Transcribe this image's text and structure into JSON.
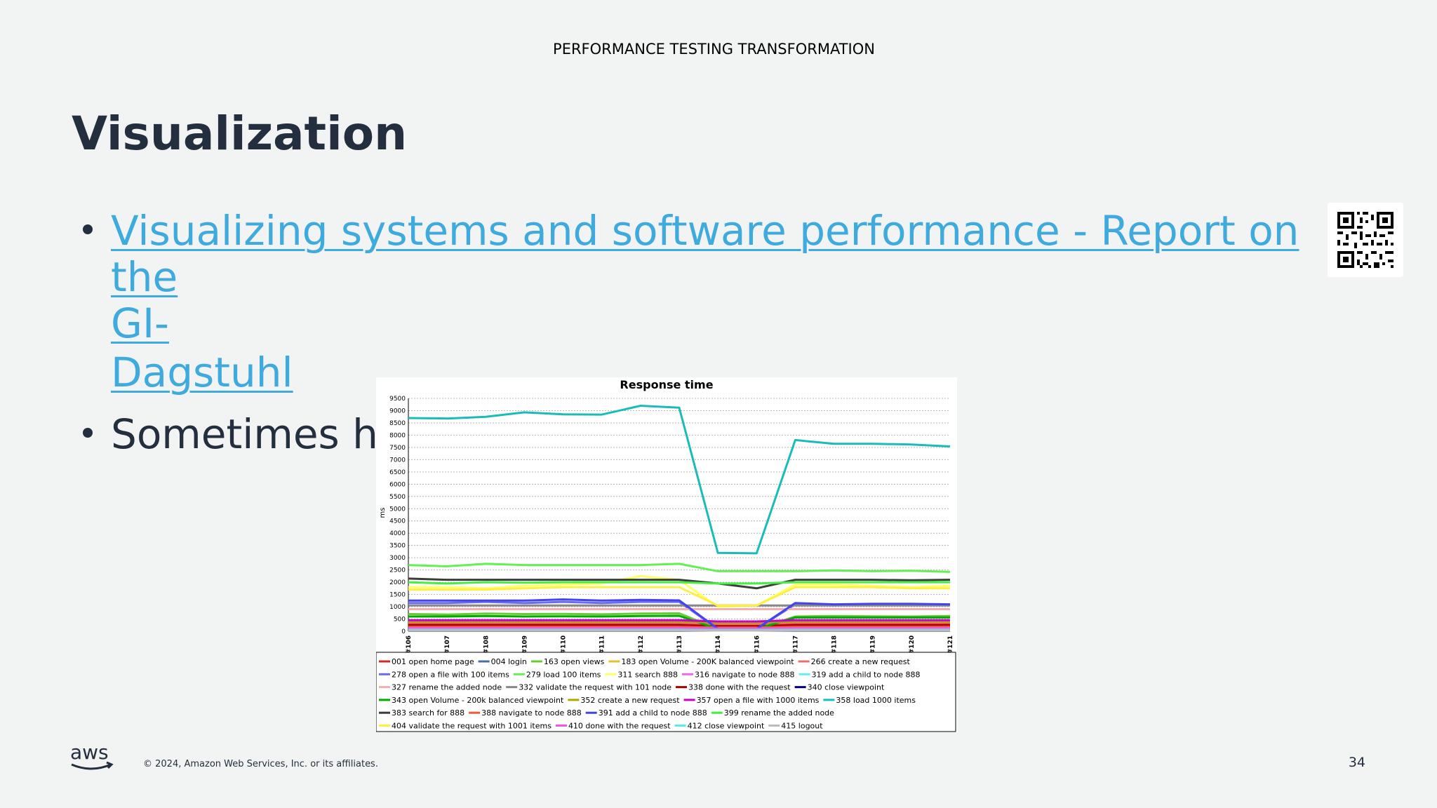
{
  "header": {
    "title": "PERFORMANCE TESTING TRANSFORMATION"
  },
  "slide": {
    "title": "Visualization",
    "bullet1": {
      "line1": "Visualizing systems and software performance - Report on the",
      "line2": "GI-",
      "line3": "Dagstuhl"
    },
    "bullet2": "Sometimes he"
  },
  "footer": {
    "logo": "aws",
    "copyright": "© 2024, Amazon Web Services, Inc. or its affiliates.",
    "page": "34"
  },
  "colors": {
    "background": "#f2f3f3",
    "title": "#232f3e",
    "link": "#3faadd"
  },
  "chart_data": {
    "type": "line",
    "title": "Response time",
    "ylabel": "ms",
    "ylim": [
      0,
      9500
    ],
    "yticks": [
      0,
      500,
      1000,
      1500,
      2000,
      2500,
      3000,
      3500,
      4000,
      4500,
      5000,
      5500,
      6000,
      6500,
      7000,
      7500,
      8000,
      8500,
      9000,
      9500
    ],
    "x": [
      "#106",
      "#107",
      "#108",
      "#109",
      "#110",
      "#111",
      "#112",
      "#113",
      "#114",
      "#116",
      "#117",
      "#118",
      "#119",
      "#120",
      "#121"
    ],
    "grid": true,
    "legend_position": "bottom",
    "series": [
      {
        "name": "001 open home page",
        "color": "#d62728",
        "values": [
          300,
          300,
          300,
          300,
          300,
          300,
          300,
          300,
          250,
          250,
          300,
          300,
          300,
          300,
          300
        ]
      },
      {
        "name": "004 login",
        "color": "#4a6fa5",
        "values": [
          200,
          200,
          200,
          200,
          200,
          200,
          200,
          200,
          150,
          150,
          200,
          200,
          200,
          200,
          200
        ]
      },
      {
        "name": "163 open views",
        "color": "#66cc33",
        "values": [
          700,
          680,
          720,
          700,
          710,
          690,
          720,
          730,
          100,
          100,
          600,
          620,
          610,
          600,
          620
        ]
      },
      {
        "name": "183 open Volume - 200K balanced viewpoint",
        "color": "#e6c229",
        "values": [
          100,
          100,
          100,
          100,
          100,
          100,
          100,
          100,
          80,
          80,
          100,
          100,
          100,
          100,
          100
        ]
      },
      {
        "name": "266 create a new request",
        "color": "#f26b6b",
        "values": [
          350,
          350,
          350,
          350,
          350,
          350,
          350,
          350,
          300,
          300,
          350,
          350,
          350,
          350,
          350
        ]
      },
      {
        "name": "278 open a file with 100 items",
        "color": "#6b6bf2",
        "values": [
          1150,
          1150,
          1200,
          1150,
          1200,
          1150,
          1200,
          1200,
          100,
          100,
          1100,
          1050,
          1100,
          1100,
          1080
        ]
      },
      {
        "name": "279 load 100 items",
        "color": "#66ee55",
        "values": [
          2700,
          2650,
          2750,
          2700,
          2700,
          2700,
          2700,
          2750,
          2450,
          2450,
          2450,
          2480,
          2450,
          2470,
          2420
        ]
      },
      {
        "name": "311 search 888",
        "color": "#ffff66",
        "values": [
          1800,
          1800,
          1750,
          1850,
          1900,
          1950,
          2250,
          2100,
          1000,
          1050,
          1900,
          1900,
          1850,
          1800,
          1850
        ]
      },
      {
        "name": "316 navigate to node 888",
        "color": "#ee66ee",
        "values": [
          150,
          150,
          150,
          150,
          150,
          150,
          150,
          150,
          120,
          120,
          150,
          150,
          150,
          150,
          150
        ]
      },
      {
        "name": "319 add a child to node 888",
        "color": "#66eeee",
        "values": [
          120,
          120,
          120,
          120,
          120,
          120,
          120,
          120,
          100,
          100,
          120,
          120,
          120,
          120,
          120
        ]
      },
      {
        "name": "327 rename the added node",
        "color": "#f2b0b0",
        "values": [
          900,
          900,
          900,
          900,
          900,
          900,
          900,
          900,
          900,
          900,
          900,
          900,
          900,
          900,
          900
        ]
      },
      {
        "name": "332 validate the request with 101 node",
        "color": "#888888",
        "values": [
          1050,
          1050,
          1050,
          1050,
          1050,
          1050,
          1050,
          1050,
          1050,
          1050,
          1050,
          1050,
          1050,
          1050,
          1050
        ]
      },
      {
        "name": "338 done with the request",
        "color": "#aa0000",
        "values": [
          250,
          250,
          250,
          250,
          250,
          250,
          250,
          250,
          200,
          200,
          250,
          250,
          250,
          250,
          250
        ]
      },
      {
        "name": "340 close viewpoint",
        "color": "#000088",
        "values": [
          80,
          80,
          80,
          80,
          80,
          80,
          80,
          80,
          60,
          60,
          80,
          80,
          80,
          80,
          80
        ]
      },
      {
        "name": "343 open Volume - 200k balanced viewpoint",
        "color": "#00aa00",
        "values": [
          600,
          600,
          620,
          600,
          610,
          600,
          620,
          630,
          90,
          90,
          560,
          560,
          560,
          560,
          560
        ]
      },
      {
        "name": "352 create a new request",
        "color": "#aaaa00",
        "values": [
          400,
          400,
          400,
          400,
          400,
          400,
          400,
          400,
          350,
          350,
          400,
          400,
          400,
          400,
          400
        ]
      },
      {
        "name": "357 open a file with 1000 items",
        "color": "#cc00cc",
        "values": [
          450,
          450,
          450,
          450,
          450,
          450,
          450,
          450,
          400,
          400,
          450,
          450,
          450,
          450,
          450
        ]
      },
      {
        "name": "358 load 1000 items",
        "color": "#1abcb8",
        "values": [
          8700,
          8680,
          8750,
          8930,
          8850,
          8840,
          9200,
          9120,
          3200,
          3180,
          7800,
          7650,
          7650,
          7620,
          7540
        ]
      },
      {
        "name": "383 search for 888",
        "color": "#3c3c3c",
        "values": [
          2150,
          2100,
          2100,
          2100,
          2100,
          2100,
          2100,
          2100,
          1950,
          1750,
          2100,
          2100,
          2100,
          2080,
          2100
        ]
      },
      {
        "name": "388 navigate to node 888",
        "color": "#f25c3c",
        "values": [
          180,
          180,
          180,
          180,
          180,
          180,
          180,
          180,
          150,
          150,
          180,
          180,
          180,
          180,
          180
        ]
      },
      {
        "name": "391 add a child to node 888",
        "color": "#4444ee",
        "values": [
          1250,
          1250,
          1250,
          1250,
          1300,
          1250,
          1280,
          1260,
          100,
          100,
          1150,
          1100,
          1120,
          1120,
          1100
        ]
      },
      {
        "name": "399 rename the added node",
        "color": "#44ee44",
        "values": [
          2000,
          1950,
          2000,
          1980,
          2000,
          2000,
          2000,
          2000,
          1950,
          1950,
          2000,
          2000,
          2000,
          2000,
          2000
        ]
      },
      {
        "name": "404 validate the request with 1001 items",
        "color": "#ffee44",
        "values": [
          1700,
          1700,
          1700,
          1750,
          1800,
          1800,
          1800,
          1800,
          1050,
          1050,
          1800,
          1800,
          1800,
          1750,
          1750
        ]
      },
      {
        "name": "410 done with the request",
        "color": "#ee55ee",
        "values": [
          130,
          130,
          130,
          130,
          130,
          130,
          130,
          130,
          110,
          110,
          130,
          130,
          130,
          130,
          130
        ]
      },
      {
        "name": "412 close viewpoint",
        "color": "#55eeee",
        "values": [
          60,
          60,
          60,
          60,
          60,
          60,
          60,
          60,
          50,
          50,
          60,
          60,
          60,
          60,
          60
        ]
      },
      {
        "name": "415 logout",
        "color": "#bbbbbb",
        "values": [
          40,
          40,
          40,
          40,
          40,
          40,
          40,
          40,
          30,
          30,
          40,
          40,
          40,
          40,
          40
        ]
      }
    ]
  }
}
